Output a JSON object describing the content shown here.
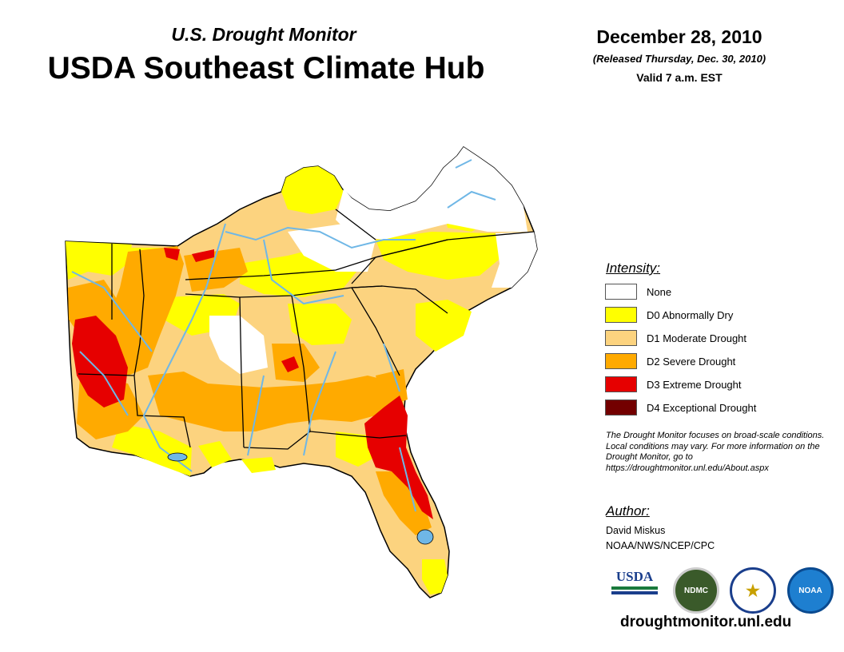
{
  "header": {
    "subtitle": "U.S. Drought Monitor",
    "title": "USDA Southeast Climate Hub",
    "date": "December 28, 2010",
    "released": "(Released Thursday, Dec. 30, 2010)",
    "valid": "Valid 7 a.m. EST"
  },
  "legend": {
    "heading": "Intensity:",
    "items": [
      {
        "label": "None",
        "color": "#ffffff"
      },
      {
        "label": "D0 Abnormally Dry",
        "color": "#ffff00"
      },
      {
        "label": "D1 Moderate Drought",
        "color": "#fcd37f"
      },
      {
        "label": "D2 Severe Drought",
        "color": "#ffaa00"
      },
      {
        "label": "D3 Extreme Drought",
        "color": "#e60000"
      },
      {
        "label": "D4 Exceptional Drought",
        "color": "#730000"
      }
    ]
  },
  "note": "The Drought Monitor focuses on broad-scale conditions. Local conditions may vary. For more information on the Drought Monitor, go to https://droughtmonitor.unl.edu/About.aspx",
  "author": {
    "heading": "Author:",
    "name": "David Miskus",
    "org": "NOAA/NWS/NCEP/CPC"
  },
  "logos": {
    "usda": "USDA",
    "ndmc": "NDMC",
    "noaa": "NOAA"
  },
  "website": "droughtmonitor.unl.edu",
  "colors": {
    "water": "#6fb7e6",
    "border": "#000000"
  }
}
